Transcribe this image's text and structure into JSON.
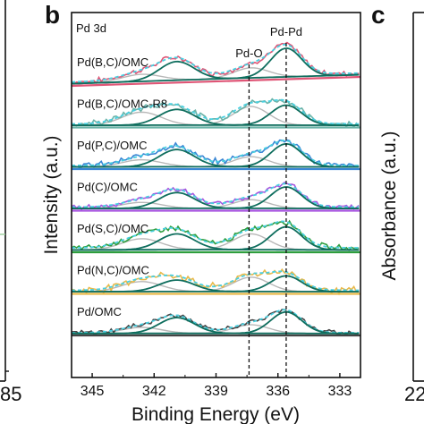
{
  "panels": {
    "left_tick_fragment": "85",
    "b_letter": "b",
    "c_letter": "c",
    "c_ylabel": "Absorbance (a.u.)",
    "c_tick_fragment": "22"
  },
  "chart_data": {
    "type": "line",
    "title": "Pd 3d",
    "xlabel": "Binding Energy (eV)",
    "ylabel": "Intensity (a.u.)",
    "xlim": [
      346,
      332
    ],
    "x_reversed": true,
    "xticks": [
      345,
      342,
      339,
      336,
      333
    ],
    "grid": false,
    "reference_lines": [
      {
        "label": "Pd-O",
        "x": 337.4,
        "style": "dashed"
      },
      {
        "label": "Pd-Pd",
        "x": 335.6,
        "style": "dashed"
      }
    ],
    "colors": {
      "Pd(B,C)/OMC": "#e05576",
      "Pd(B,C)/OMC-R8": "#6bb3a8",
      "Pd(P,C)/OMC": "#3a86d4",
      "Pd(C)/OMC": "#a855e0",
      "Pd(S,C)/OMC": "#2e9e3e",
      "Pd(N,C)/OMC": "#e8b94a",
      "Pd/OMC": "#444444",
      "fit_component": "#0f6e5e",
      "fit_component_2": "#b8b8b8",
      "envelope": "#49cfe0"
    },
    "series": [
      {
        "name": "Pd(B,C)/OMC",
        "baseline": 0.12,
        "peak_metal": 1.0,
        "peak_oxide": 0.35,
        "peak_metal2": 0.65,
        "noise": 0.14
      },
      {
        "name": "Pd(B,C)/OMC-R8",
        "baseline": 0.1,
        "peak_metal": 0.7,
        "peak_oxide": 0.65,
        "peak_metal2": 0.55,
        "noise": 0.16
      },
      {
        "name": "Pd(P,C)/OMC",
        "baseline": 0.1,
        "peak_metal": 0.8,
        "peak_oxide": 0.35,
        "peak_metal2": 0.6,
        "noise": 0.16
      },
      {
        "name": "Pd(C)/OMC",
        "baseline": 0.1,
        "peak_metal": 0.75,
        "peak_oxide": 0.3,
        "peak_metal2": 0.55,
        "noise": 0.12
      },
      {
        "name": "Pd(S,C)/OMC",
        "baseline": 0.15,
        "peak_metal": 0.8,
        "peak_oxide": 0.55,
        "peak_metal2": 0.55,
        "noise": 0.14
      },
      {
        "name": "Pd(N,C)/OMC",
        "baseline": 0.1,
        "peak_metal": 0.55,
        "peak_oxide": 0.5,
        "peak_metal2": 0.4,
        "noise": 0.18
      },
      {
        "name": "Pd/OMC",
        "baseline": 0.05,
        "peak_metal": 0.75,
        "peak_oxide": 0.3,
        "peak_metal2": 0.55,
        "noise": 0.12
      }
    ],
    "peak_positions": {
      "metal_3d52": 335.6,
      "oxide_3d52": 337.3,
      "metal_3d32": 340.9,
      "oxide_3d32": 342.6
    }
  }
}
